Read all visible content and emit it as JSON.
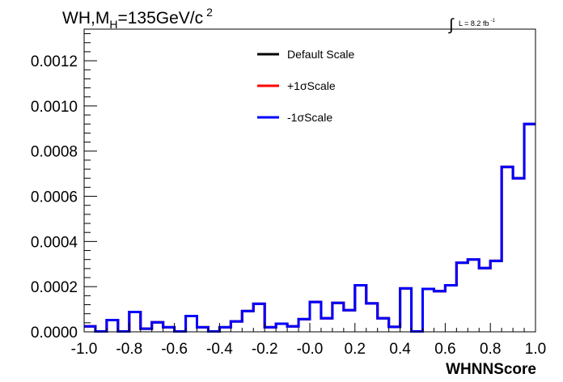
{
  "title": {
    "main": "WH,M",
    "sub": "H",
    "rest": "=135GeV/c",
    "sup": "2"
  },
  "lumi": {
    "integral": "∫",
    "text": "L = 8.2 fb",
    "sup": "-1"
  },
  "legend": [
    {
      "label": "Default Scale",
      "color": "#000000"
    },
    {
      "label": "+1σScale",
      "color": "#ff0000"
    },
    {
      "label": "-1σScale",
      "color": "#0000ff"
    }
  ],
  "chart_data": {
    "type": "line",
    "step": true,
    "xlabel": "WHNNScore",
    "ylabel": "",
    "xlim": [
      -1.0,
      1.0
    ],
    "ylim": [
      0.0,
      0.00134
    ],
    "grid": false,
    "legend_position": "top-center",
    "x_ticks": [
      "-1.0",
      "-0.8",
      "-0.6",
      "-0.4",
      "-0.2",
      "-0.0",
      "0.2",
      "0.4",
      "0.6",
      "0.8",
      "1.0"
    ],
    "y_ticks": [
      "0.0000",
      "0.0002",
      "0.0004",
      "0.0006",
      "0.0008",
      "0.0010",
      "0.0012"
    ],
    "bin_edges": [
      -1.0,
      -0.95,
      -0.9,
      -0.85,
      -0.8,
      -0.75,
      -0.7,
      -0.65,
      -0.6,
      -0.55,
      -0.5,
      -0.45,
      -0.4,
      -0.35,
      -0.3,
      -0.25,
      -0.2,
      -0.15,
      -0.1,
      -0.05,
      0.0,
      0.05,
      0.1,
      0.15,
      0.2,
      0.25,
      0.3,
      0.35,
      0.4,
      0.45,
      0.5,
      0.55,
      0.6,
      0.65,
      0.7,
      0.75,
      0.8,
      0.85,
      0.9,
      0.95,
      1.0
    ],
    "series": [
      {
        "name": "Default Scale",
        "color": "#000000",
        "values": [
          2.4e-05,
          2e-06,
          5.2e-05,
          2e-06,
          8.8e-05,
          1.4e-05,
          4.2e-05,
          2e-05,
          2e-06,
          7e-05,
          2e-05,
          2e-06,
          2e-05,
          4.6e-05,
          9.2e-05,
          0.000124,
          2e-05,
          3.6e-05,
          2.4e-05,
          5.6e-05,
          0.000132,
          6e-05,
          0.000128,
          9.6e-05,
          0.000206,
          0.000126,
          6e-05,
          2.2e-05,
          0.000192,
          2e-06,
          0.00019,
          0.00018,
          0.000206,
          0.000306,
          0.00032,
          0.000282,
          0.000314,
          0.00073,
          0.00068,
          0.00092,
          0.000658
        ]
      },
      {
        "name": "+1σScale",
        "color": "#ff0000",
        "values": [
          2.4e-05,
          2e-06,
          5.2e-05,
          2e-06,
          8.8e-05,
          1.4e-05,
          4.2e-05,
          2e-05,
          2e-06,
          7e-05,
          2e-05,
          2e-06,
          2e-05,
          4.6e-05,
          9.2e-05,
          0.000124,
          2e-05,
          3.6e-05,
          2.4e-05,
          5.6e-05,
          0.000132,
          6e-05,
          0.000128,
          9.6e-05,
          0.000206,
          0.000126,
          6e-05,
          2.2e-05,
          0.000192,
          2e-06,
          0.00019,
          0.00018,
          0.000206,
          0.000306,
          0.00032,
          0.000282,
          0.000314,
          0.00073,
          0.00068,
          0.00092,
          0.000658
        ]
      },
      {
        "name": "-1σScale",
        "color": "#0000ff",
        "values": [
          2.4e-05,
          2e-06,
          5.2e-05,
          2e-06,
          8.8e-05,
          1.4e-05,
          4.2e-05,
          2e-05,
          2e-06,
          7e-05,
          2e-05,
          2e-06,
          2e-05,
          4.6e-05,
          9.2e-05,
          0.000124,
          2e-05,
          3.6e-05,
          2.4e-05,
          5.6e-05,
          0.000132,
          6e-05,
          0.000128,
          9.6e-05,
          0.000206,
          0.000126,
          6e-05,
          2.2e-05,
          0.000192,
          2e-06,
          0.00019,
          0.00018,
          0.000206,
          0.000306,
          0.00032,
          0.000282,
          0.000314,
          0.00073,
          0.00068,
          0.00092,
          0.000658
        ]
      }
    ]
  }
}
